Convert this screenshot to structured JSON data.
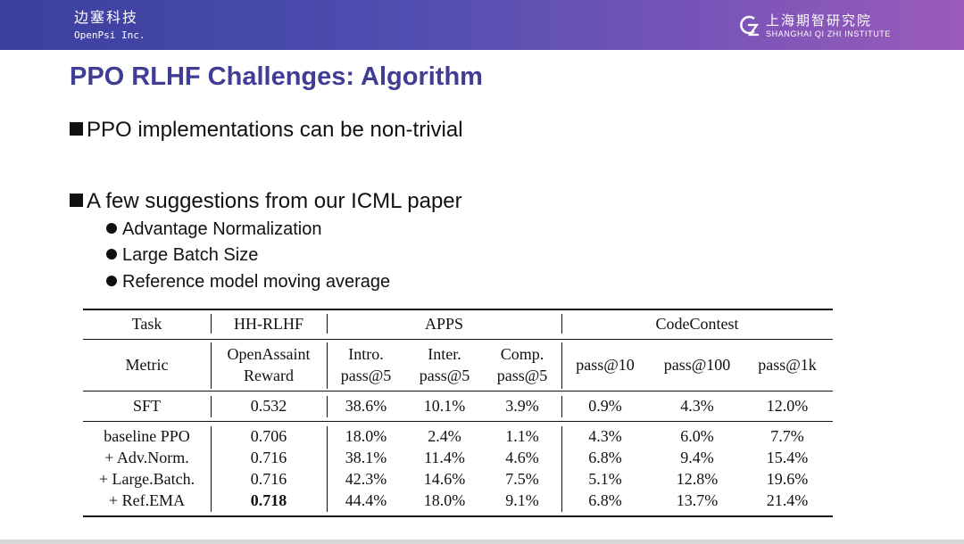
{
  "header": {
    "org_cn": "边塞科技",
    "org_en": "OpenPsi Inc.",
    "institute_cn": "上海期智研究院",
    "institute_en": "SHANGHAI QI ZHI INSTITUTE",
    "gradient_start": "#3b3f9e",
    "gradient_end": "#9a5bb9"
  },
  "title": "PPO RLHF Challenges: Algorithm",
  "title_color": "#3f3d94",
  "bullets": [
    "PPO implementations can be non-trivial",
    "A few suggestions from our ICML paper"
  ],
  "sub_bullets": [
    "Advantage Normalization",
    "Large Batch Size",
    "Reference model moving average"
  ],
  "table": {
    "groups": {
      "task": "Task",
      "hh": "HH-RLHF",
      "apps": "APPS",
      "code": "CodeContest"
    },
    "metric_label": "Metric",
    "metric_cols": [
      "OpenAssaint",
      "Reward",
      "Intro.",
      "pass@5",
      "Inter.",
      "pass@5",
      "Comp.",
      "pass@5",
      "pass@10",
      "pass@100",
      "pass@1k"
    ],
    "rows": [
      [
        "SFT",
        "0.532",
        "38.6%",
        "10.1%",
        "3.9%",
        "0.9%",
        "4.3%",
        "12.0%"
      ],
      [
        "baseline PPO",
        "0.706",
        "18.0%",
        "2.4%",
        "1.1%",
        "4.3%",
        "6.0%",
        "7.7%"
      ],
      [
        "+ Adv.Norm.",
        "0.716",
        "38.1%",
        "11.4%",
        "4.6%",
        "6.8%",
        "9.4%",
        "15.4%"
      ],
      [
        "+ Large.Batch.",
        "0.716",
        "42.3%",
        "14.6%",
        "7.5%",
        "5.1%",
        "12.8%",
        "19.6%"
      ],
      [
        "+ Ref.EMA",
        "0.718",
        "44.4%",
        "18.0%",
        "9.1%",
        "6.8%",
        "13.7%",
        "21.4%"
      ]
    ]
  }
}
